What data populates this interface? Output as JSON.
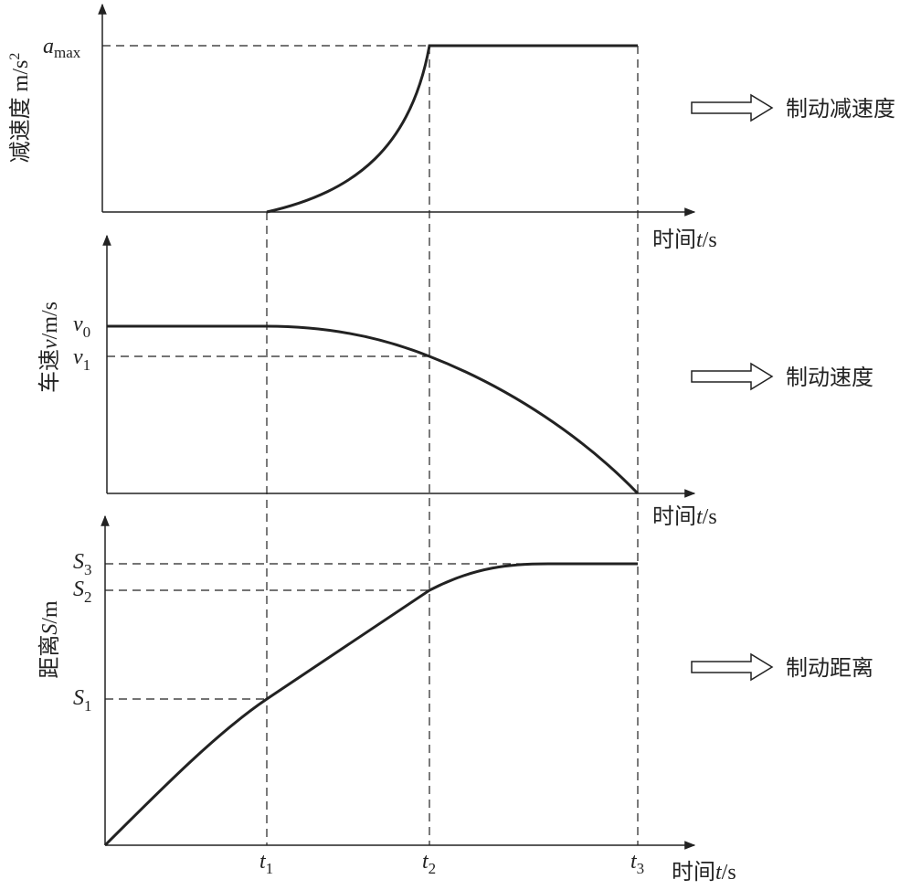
{
  "panels": [
    {
      "y_label": {
        "text": "减速度",
        "unit": "m/s",
        "sup": "2"
      },
      "levels": [
        {
          "main": "a",
          "sub": "max"
        }
      ],
      "x_label": {
        "text": "时间",
        "var": "t",
        "unit": "/s"
      },
      "caption": "制动减速度"
    },
    {
      "y_label": {
        "text": "车速",
        "var": "v",
        "unit": "/m/s"
      },
      "levels": [
        {
          "main": "v",
          "sub": "0"
        },
        {
          "main": "v",
          "sub": "1"
        }
      ],
      "x_label": {
        "text": "时间",
        "var": "t",
        "unit": "/s"
      },
      "caption": "制动速度"
    },
    {
      "y_label": {
        "text": "距离",
        "var": "S",
        "unit": "/m"
      },
      "levels": [
        {
          "main": "S",
          "sub": "3"
        },
        {
          "main": "S",
          "sub": "2"
        },
        {
          "main": "S",
          "sub": "1"
        }
      ],
      "x_label": {
        "text": "时间",
        "var": "t",
        "unit": "/s"
      },
      "caption": "制动距离"
    }
  ],
  "time_ticks": [
    {
      "main": "t",
      "sub": "1"
    },
    {
      "main": "t",
      "sub": "2"
    },
    {
      "main": "t",
      "sub": "3"
    }
  ]
}
